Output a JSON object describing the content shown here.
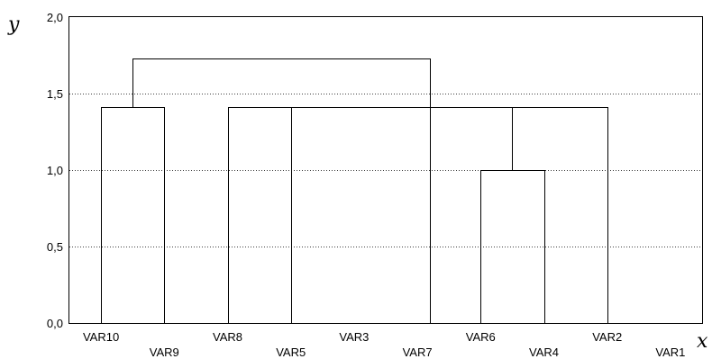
{
  "chart_data": {
    "type": "dendrogram",
    "xlabel": "x",
    "ylabel": "y",
    "ylim": [
      0,
      2
    ],
    "yticks": [
      "0,0",
      "0,5",
      "1,0",
      "1,5",
      "2,0"
    ],
    "grid": "horizontal dotted",
    "leaves": [
      "VAR10",
      "VAR9",
      "VAR8",
      "VAR5",
      "VAR3",
      "VAR7",
      "VAR6",
      "VAR4",
      "VAR2",
      "VAR1"
    ],
    "merges": [
      {
        "left": "VAR6",
        "right": "VAR4",
        "height": 1.0
      },
      {
        "left": "VAR10",
        "right": "VAR9",
        "height": 1.414
      },
      {
        "left": "VAR8",
        "right": "VAR5",
        "height": 1.414
      },
      {
        "left": "VAR5",
        "right": "VAR6+VAR4",
        "height": 1.414
      },
      {
        "left": "VAR6+VAR4",
        "right": "VAR2",
        "height": 1.414
      },
      {
        "left": "VAR10+VAR9",
        "right": "VAR8+VAR5+VAR6+VAR4+VAR2",
        "height": 1.732
      }
    ],
    "colors": {
      "line": "#000000",
      "grid": "#000000",
      "frame": "#000000"
    }
  }
}
